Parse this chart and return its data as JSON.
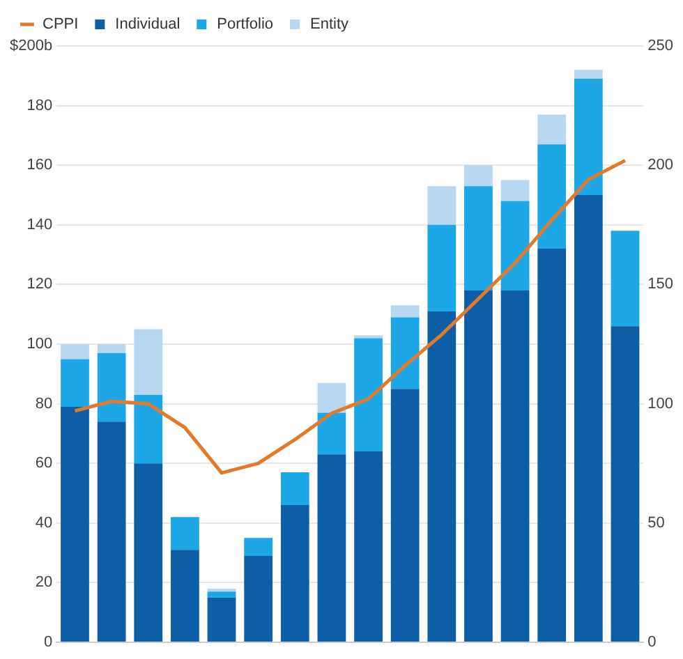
{
  "chart_data": {
    "type": "bar",
    "stacked": true,
    "categories": [
      null,
      null,
      null,
      null,
      null,
      null,
      null,
      null,
      null,
      null,
      null,
      null,
      null,
      null,
      null,
      null
    ],
    "series": [
      {
        "name": "Individual",
        "color": "#0e5ea5",
        "values": [
          79,
          74,
          60,
          31,
          15,
          29,
          46,
          63,
          64,
          85,
          111,
          118,
          118,
          132,
          150,
          106
        ]
      },
      {
        "name": "Portfolio",
        "color": "#1ea7e6",
        "values": [
          16,
          23,
          23,
          11,
          2,
          6,
          11,
          14,
          38,
          24,
          29,
          35,
          30,
          35,
          39,
          32
        ]
      },
      {
        "name": "Entity",
        "color": "#b8d8f2",
        "values": [
          5,
          3,
          22,
          0,
          1,
          0,
          0,
          10,
          1,
          4,
          13,
          7,
          7,
          10,
          3,
          0
        ]
      },
      {
        "name": "CPPI",
        "type": "line",
        "axis": "y2",
        "color": "#e07a2c",
        "values": [
          97,
          101,
          100,
          90,
          71,
          75,
          85,
          96,
          102,
          116,
          129,
          144,
          159,
          177,
          194,
          202
        ]
      }
    ],
    "ylim": [
      0,
      200
    ],
    "yticks": [
      0,
      20,
      40,
      60,
      80,
      100,
      120,
      140,
      160,
      180,
      {
        "value": 200,
        "label": "$200b"
      }
    ],
    "y2lim": [
      0,
      250
    ],
    "y2ticks": [
      0,
      50,
      100,
      150,
      200,
      250
    ],
    "grid": "y",
    "legend": "top left"
  }
}
